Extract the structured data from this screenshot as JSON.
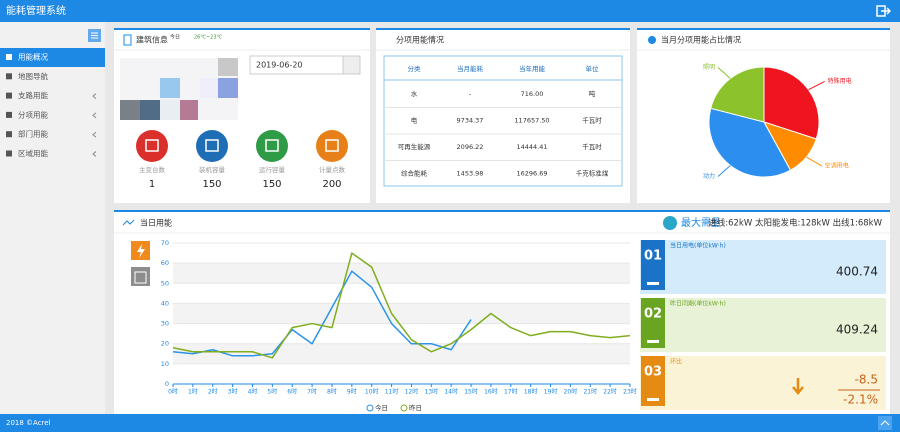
{
  "header": {
    "title": "能耗管理系统"
  },
  "sidebar": {
    "items": [
      "用能概况",
      "地图导航",
      "支路用能",
      "分项用能",
      "部门用能",
      "区域用能"
    ]
  },
  "footer": {
    "text": "2018 ©Acrel"
  },
  "building": {
    "title": "建筑信息",
    "weather_day": "今日",
    "weather_temp": "26℃~23℃",
    "date": "2019-06-20",
    "stats": [
      {
        "label": "主变台数",
        "value": "1"
      },
      {
        "label": "装机容量",
        "value": "150"
      },
      {
        "label": "运行容量",
        "value": "150"
      },
      {
        "label": "计量点数",
        "value": "200"
      }
    ]
  },
  "subitem_table": {
    "title": "分项用能情况",
    "columns": [
      "分类",
      "当月能耗",
      "当年用能",
      "单位"
    ],
    "rows": [
      [
        "水",
        "-",
        "716.00",
        "吨"
      ],
      [
        "电",
        "9734.37",
        "117657.50",
        "千瓦时"
      ],
      [
        "可再生能源",
        "2096.22",
        "14444.41",
        "千瓦时"
      ],
      [
        "综合能耗",
        "1453.98",
        "16296.69",
        "千克标准煤"
      ]
    ]
  },
  "demand": {
    "title": "最大需量",
    "detail": "进线:62kW 太阳能发电:128kW 出线1:68kW"
  },
  "cards": [
    {
      "num": "01",
      "label": "当日用电(单位kW·h)",
      "values": [
        "400.74"
      ],
      "color": "#1a73c9",
      "bg": "#d3ebfa"
    },
    {
      "num": "02",
      "label": "昨日同期(单位kW·h)",
      "values": [
        "409.24"
      ],
      "color": "#6aa521",
      "bg": "#e8f2d6"
    },
    {
      "num": "03",
      "label": "环比",
      "values": [
        "-8.5",
        "-2.1%"
      ],
      "color": "#e58a12",
      "bg": "#fbf3d6"
    }
  ],
  "chart_data": [
    {
      "type": "pie",
      "title": "当月分项用能占比情况",
      "categories": [
        "特殊用电",
        "空调用电",
        "动力",
        "照明"
      ],
      "values": [
        30,
        12,
        37,
        21
      ],
      "colors": [
        "#f0141e",
        "#ff8c00",
        "#2c8ff0",
        "#8cc32c"
      ]
    },
    {
      "type": "line",
      "title": "当日用能",
      "categories": [
        "0时",
        "1时",
        "2时",
        "3时",
        "4时",
        "5时",
        "6时",
        "7时",
        "8时",
        "9时",
        "10时",
        "11时",
        "12时",
        "13时",
        "14时",
        "15时",
        "16时",
        "17时",
        "18时",
        "19时",
        "20时",
        "21时",
        "22时",
        "23时"
      ],
      "series": [
        {
          "name": "今日",
          "color": "#2c93e8",
          "values": [
            16,
            15,
            17,
            14,
            14,
            15,
            27,
            20,
            38,
            56,
            48,
            30,
            20,
            20,
            17,
            32,
            null,
            null,
            null,
            null,
            null,
            null,
            null,
            null
          ]
        },
        {
          "name": "昨日",
          "color": "#7fad1e",
          "values": [
            18,
            16,
            16,
            16,
            16,
            13,
            28,
            30,
            28,
            65,
            58,
            35,
            22,
            16,
            20,
            27,
            35,
            28,
            24,
            26,
            26,
            24,
            23,
            24
          ]
        }
      ],
      "ylim": [
        0,
        70
      ],
      "yticks": [
        0,
        10,
        20,
        30,
        40,
        50,
        60,
        70
      ],
      "grid": true
    }
  ]
}
